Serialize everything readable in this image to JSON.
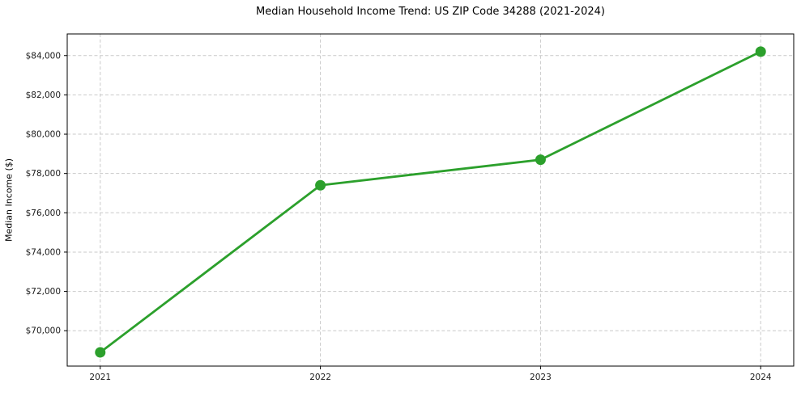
{
  "chart_data": {
    "type": "line",
    "title": "Median Household Income Trend: US ZIP Code 34288 (2021-2024)",
    "xlabel": "",
    "ylabel": "Median Income ($)",
    "x": [
      2021,
      2022,
      2023,
      2024
    ],
    "xtick_labels": [
      "2021",
      "2022",
      "2023",
      "2024"
    ],
    "series": [
      {
        "name": "Median Household Income",
        "values": [
          68900,
          77400,
          78700,
          84200
        ]
      }
    ],
    "yticks": [
      70000,
      72000,
      74000,
      76000,
      78000,
      80000,
      82000,
      84000
    ],
    "ytick_labels": [
      "$70,000",
      "$72,000",
      "$74,000",
      "$76,000",
      "$78,000",
      "$80,000",
      "$82,000",
      "$84,000"
    ],
    "xlim": [
      2020.85,
      2024.15
    ],
    "ylim": [
      68200,
      85100
    ],
    "grid": true,
    "grid_style": "dashed",
    "legend_position": "none",
    "style": {
      "line_color": "#2ca02c",
      "marker_color": "#2ca02c",
      "marker_size": 6.5,
      "line_width": 2.8,
      "grid_color": "#c9c9c9",
      "spine_color": "#000000",
      "tick_color": "#000000",
      "text_color": "#1a1a1a",
      "background": "#ffffff"
    }
  }
}
